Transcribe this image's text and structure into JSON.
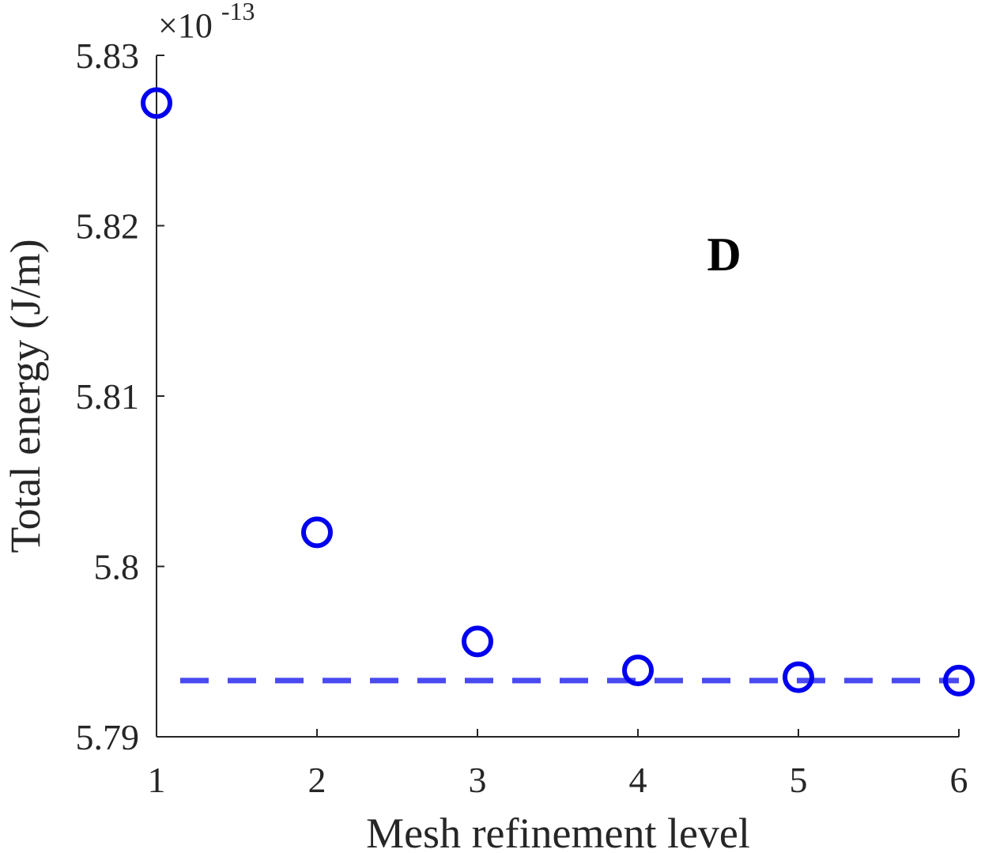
{
  "chart_data": {
    "type": "scatter",
    "title": "",
    "xlabel": "Mesh refinement level",
    "ylabel": "Total energy (J/m)",
    "y_exponent_label": "×10",
    "y_exponent_power": "-13",
    "annotation": "D",
    "xlim": [
      1,
      6
    ],
    "ylim": [
      5.79,
      5.83
    ],
    "xticks": [
      1,
      2,
      3,
      4,
      5,
      6
    ],
    "xtick_labels": [
      "1",
      "2",
      "3",
      "4",
      "5",
      "6"
    ],
    "yticks": [
      5.79,
      5.8,
      5.81,
      5.82,
      5.83
    ],
    "ytick_labels": [
      "5.79",
      "5.8",
      "5.81",
      "5.82",
      "5.83"
    ],
    "grid": false,
    "legend": "none",
    "series": [
      {
        "x": [
          1,
          2,
          3,
          4,
          5,
          6
        ],
        "y": [
          5.8272,
          5.802,
          5.7956,
          5.7939,
          5.7935,
          5.7933
        ],
        "marker": "circle-open",
        "color": "#0000ee"
      }
    ],
    "reference_line": {
      "y": 5.7933,
      "style": "dashed",
      "color": "#4a4af0"
    },
    "colors": {
      "axis": "#262626",
      "marker": "#0000ee",
      "reference": "#4a4af0"
    }
  }
}
